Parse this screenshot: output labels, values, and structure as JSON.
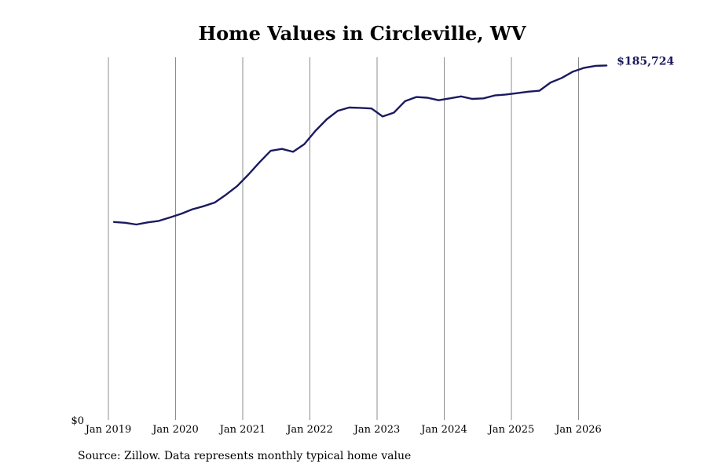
{
  "chart_data": {
    "type": "line",
    "title": "Home Values in Circleville, WV",
    "xlabel": "",
    "ylabel": "",
    "x_tick_labels": [
      "Jan 2019",
      "Jan 2020",
      "Jan 2021",
      "Jan 2022",
      "Jan 2023",
      "Jan 2024",
      "Jan 2025",
      "Jan 2026"
    ],
    "y_tick_labels": [
      "$0"
    ],
    "ylim": [
      0,
      190000
    ],
    "xlim": [
      "2019-01",
      "2026-07"
    ],
    "grid": "vertical",
    "line_color": "#1a1a60",
    "end_label": "$185,724",
    "series": [
      {
        "points": [
          [
            "2019-02",
            103700
          ],
          [
            "2019-04",
            103300
          ],
          [
            "2019-06",
            102400
          ],
          [
            "2019-08",
            103500
          ],
          [
            "2019-10",
            104300
          ],
          [
            "2019-12",
            106100
          ],
          [
            "2020-02",
            108000
          ],
          [
            "2020-04",
            110400
          ],
          [
            "2020-06",
            112000
          ],
          [
            "2020-08",
            113900
          ],
          [
            "2020-10",
            118000
          ],
          [
            "2020-12",
            122500
          ],
          [
            "2021-02",
            128500
          ],
          [
            "2021-04",
            135000
          ],
          [
            "2021-06",
            141000
          ],
          [
            "2021-08",
            142000
          ],
          [
            "2021-10",
            140500
          ],
          [
            "2021-12",
            144500
          ],
          [
            "2022-02",
            151500
          ],
          [
            "2022-04",
            157500
          ],
          [
            "2022-06",
            162000
          ],
          [
            "2022-08",
            163700
          ],
          [
            "2022-10",
            163500
          ],
          [
            "2022-12",
            163200
          ],
          [
            "2023-02",
            159000
          ],
          [
            "2023-04",
            161000
          ],
          [
            "2023-06",
            167000
          ],
          [
            "2023-08",
            169200
          ],
          [
            "2023-10",
            168800
          ],
          [
            "2023-12",
            167500
          ],
          [
            "2024-02",
            168500
          ],
          [
            "2024-04",
            169500
          ],
          [
            "2024-06",
            168200
          ],
          [
            "2024-08",
            168500
          ],
          [
            "2024-10",
            170000
          ],
          [
            "2024-12",
            170500
          ],
          [
            "2025-02",
            171200
          ],
          [
            "2025-04",
            172000
          ],
          [
            "2025-06",
            172500
          ],
          [
            "2025-08",
            176800
          ],
          [
            "2025-10",
            179200
          ],
          [
            "2025-12",
            182500
          ],
          [
            "2026-02",
            184500
          ],
          [
            "2026-04",
            185500
          ],
          [
            "2026-06",
            185724
          ]
        ]
      }
    ]
  },
  "footer": {
    "source": "Source: Zillow. Data represents monthly typical home value"
  }
}
